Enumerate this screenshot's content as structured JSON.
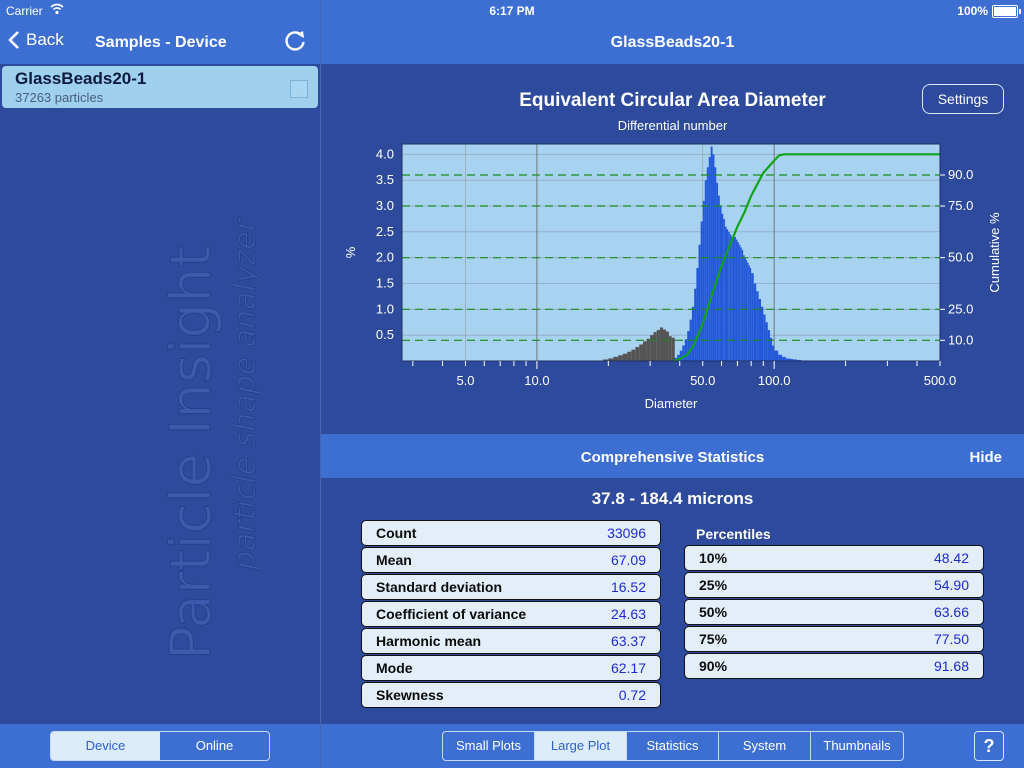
{
  "status_bar": {
    "carrier": "Carrier",
    "time": "6:17 PM",
    "battery": "100%"
  },
  "left_nav": {
    "back_label": "Back",
    "title": "Samples - Device"
  },
  "samples": [
    {
      "name": "GlassBeads20-1",
      "subtitle": "37263 particles"
    }
  ],
  "watermark": {
    "line1": "Particle Insight",
    "line2": "particle shape analyzer"
  },
  "left_footer": {
    "tabs": [
      "Device",
      "Online"
    ],
    "selected": "Device"
  },
  "right_nav": {
    "title": "GlassBeads20-1"
  },
  "settings_label": "Settings",
  "chart_data": {
    "type": "bar",
    "title": "Equivalent Circular Area Diameter",
    "subtitle": "Differential number",
    "xlabel": "Diameter",
    "ylabel": "%",
    "ylabel_right": "Cumulative %",
    "x_scale": "log",
    "xlim": [
      2.7,
      500
    ],
    "ylim": [
      0,
      4.2
    ],
    "y2lim": [
      0,
      105
    ],
    "x_ticks": [
      "5.0",
      "10.0",
      "50.0",
      "100.0",
      "500.0"
    ],
    "y_ticks": [
      "0.5",
      "1.0",
      "1.5",
      "2.0",
      "2.5",
      "3.0",
      "3.5",
      "4.0"
    ],
    "y2_ticks": [
      "10.0",
      "25.0",
      "50.0",
      "75.0",
      "90.0"
    ],
    "colors": {
      "excluded": "#555555",
      "included": "#2358d8",
      "cumulative": "#11a21a",
      "plot_bg": "#a8d3f0",
      "ref_lines": "#1a8a1a"
    },
    "series": [
      {
        "x": [
          18,
          19,
          20,
          21,
          22,
          23,
          24,
          25,
          26,
          27,
          28,
          29,
          30,
          31,
          32,
          33,
          34,
          35,
          36,
          37
        ],
        "values": [
          0.01,
          0.03,
          0.05,
          0.08,
          0.11,
          0.14,
          0.18,
          0.22,
          0.27,
          0.32,
          0.38,
          0.43,
          0.5,
          0.56,
          0.6,
          0.65,
          0.61,
          0.57,
          0.48,
          0.45
        ]
      },
      {
        "x": [
          38,
          39,
          40,
          41,
          42,
          43,
          44,
          45,
          46,
          47,
          48,
          49,
          50,
          51,
          52,
          53,
          54,
          55,
          56,
          57,
          58,
          59,
          60,
          61,
          62,
          63,
          64,
          65,
          66,
          67,
          68,
          69,
          70,
          71,
          72,
          73,
          74,
          75,
          76,
          77,
          78,
          79,
          80,
          82,
          84,
          86,
          88,
          90,
          92,
          94,
          96,
          98,
          100,
          104,
          108,
          112,
          116,
          120,
          125,
          130,
          135,
          140
        ],
        "values": [
          0.06,
          0.12,
          0.2,
          0.3,
          0.42,
          0.58,
          0.8,
          1.05,
          1.4,
          1.8,
          2.25,
          2.7,
          3.1,
          3.5,
          3.75,
          3.95,
          4.15,
          4.0,
          3.75,
          3.45,
          3.2,
          3.0,
          2.85,
          2.75,
          2.6,
          2.55,
          2.5,
          2.45,
          2.4,
          2.45,
          2.4,
          2.35,
          2.3,
          2.25,
          2.2,
          2.15,
          2.05,
          2.0,
          1.95,
          1.9,
          1.85,
          1.8,
          1.7,
          1.5,
          1.35,
          1.2,
          1.05,
          0.9,
          0.75,
          0.6,
          0.45,
          0.3,
          0.2,
          0.12,
          0.08,
          0.05,
          0.04,
          0.03,
          0.02,
          0.01,
          0.01,
          0.01
        ]
      }
    ],
    "cumulative": {
      "x": [
        37.8,
        40,
        43,
        46,
        50,
        55,
        60,
        65,
        70,
        75,
        80,
        90,
        100,
        105,
        110,
        500
      ],
      "y": [
        0,
        1,
        3,
        8,
        18,
        33,
        46,
        56,
        65,
        72,
        80,
        91,
        97,
        99.5,
        100,
        100
      ]
    },
    "reference_lines": [
      10,
      25,
      50,
      75,
      90
    ]
  },
  "stats_panel": {
    "title": "Comprehensive Statistics",
    "hide_label": "Hide",
    "range": "37.8 - 184.4 microns"
  },
  "statistics": [
    {
      "label": "Count",
      "value": "33096"
    },
    {
      "label": "Mean",
      "value": "67.09"
    },
    {
      "label": "Standard deviation",
      "value": "16.52"
    },
    {
      "label": "Coefficient of variance",
      "value": "24.63"
    },
    {
      "label": "Harmonic mean",
      "value": "63.37"
    },
    {
      "label": "Mode",
      "value": "62.17"
    },
    {
      "label": "Skewness",
      "value": "0.72"
    }
  ],
  "percentiles_title": "Percentiles",
  "percentiles": [
    {
      "label": "10%",
      "value": "48.42"
    },
    {
      "label": "25%",
      "value": "54.90"
    },
    {
      "label": "50%",
      "value": "63.66"
    },
    {
      "label": "75%",
      "value": "77.50"
    },
    {
      "label": "90%",
      "value": "91.68"
    }
  ],
  "right_footer": {
    "tabs": [
      "Small Plots",
      "Large Plot",
      "Statistics",
      "System",
      "Thumbnails"
    ],
    "selected": "Large Plot",
    "help_label": "?"
  }
}
